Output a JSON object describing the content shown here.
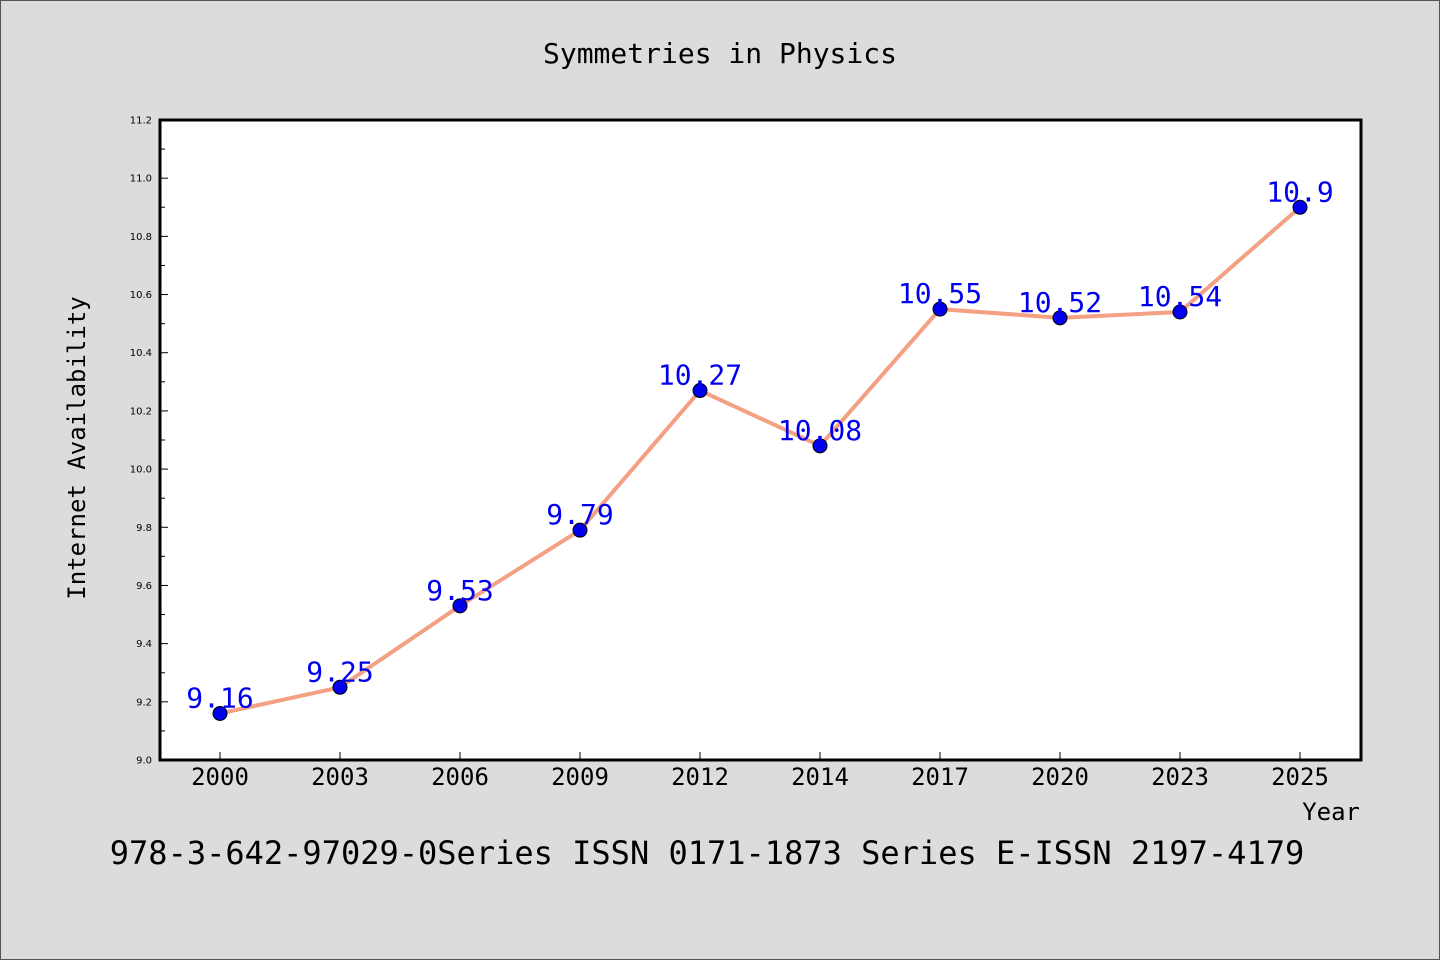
{
  "chart_data": {
    "type": "line",
    "title": "Symmetries in Physics",
    "xlabel": "Year",
    "ylabel": "Internet Availability",
    "categories": [
      "2000",
      "2003",
      "2006",
      "2009",
      "2012",
      "2014",
      "2017",
      "2020",
      "2023",
      "2025"
    ],
    "values": [
      9.16,
      9.25,
      9.53,
      9.79,
      10.27,
      10.08,
      10.55,
      10.52,
      10.54,
      10.9
    ],
    "data_labels": [
      "9.16",
      "9.25",
      "9.53",
      "9.79",
      "10.27",
      "10.08",
      "10.55",
      "10.52",
      "10.54",
      "10.9"
    ],
    "ylim": [
      9.0,
      11.2
    ],
    "yticks": [
      "9.0",
      "9.2",
      "9.4",
      "9.6",
      "9.8",
      "10.0",
      "10.2",
      "10.4",
      "10.6",
      "10.8",
      "11.0",
      "11.2"
    ],
    "grid": false,
    "line_color": "#f4a082",
    "marker_color": "#0000ee",
    "label_color": "#0000ee"
  },
  "footer_text": "978-3-642-97029-0Series ISSN 0171-1873 Series E-ISSN 2197-4179"
}
